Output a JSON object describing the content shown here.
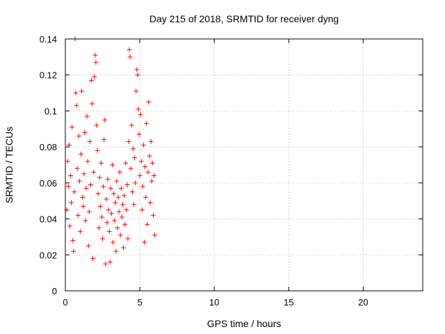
{
  "chart_data": {
    "type": "scatter",
    "title": "Day 215 of 2018, SRMTID for receiver dyng",
    "xlabel": "GPS time / hours",
    "ylabel": "SRMTID / TECUs",
    "xlim": [
      0,
      24
    ],
    "ylim": [
      0,
      0.14
    ],
    "x_ticks": [
      0,
      5,
      10,
      15,
      20
    ],
    "x_tick_labels": [
      "0",
      "5",
      "10",
      "15",
      "20"
    ],
    "y_ticks": [
      0,
      0.02,
      0.04,
      0.06,
      0.08,
      0.1,
      0.12,
      0.14
    ],
    "y_tick_labels": [
      "0",
      "0.02",
      "0.04",
      "0.06",
      "0.08",
      "0.1",
      "0.12",
      "0.14"
    ],
    "grid": true,
    "marker": "+",
    "color": "#ff0000",
    "series": [
      {
        "name": "SRMTID",
        "points": [
          [
            0.1,
            0.045
          ],
          [
            0.15,
            0.072
          ],
          [
            0.2,
            0.058
          ],
          [
            0.25,
            0.081
          ],
          [
            0.3,
            0.036
          ],
          [
            0.35,
            0.064
          ],
          [
            0.4,
            0.049
          ],
          [
            0.45,
            0.091
          ],
          [
            0.5,
            0.028
          ],
          [
            0.55,
            0.022
          ],
          [
            0.6,
            0.055
          ],
          [
            0.65,
            0.14
          ],
          [
            0.7,
            0.11
          ],
          [
            0.75,
            0.103
          ],
          [
            0.8,
            0.068
          ],
          [
            0.85,
            0.042
          ],
          [
            0.9,
            0.086
          ],
          [
            0.95,
            0.061
          ],
          [
            1.0,
            0.033
          ],
          [
            1.05,
            0.076
          ],
          [
            1.1,
            0.111
          ],
          [
            1.15,
            0.052
          ],
          [
            1.2,
            0.047
          ],
          [
            1.25,
            0.065
          ],
          [
            1.3,
            0.088
          ],
          [
            1.35,
            0.039
          ],
          [
            1.4,
            0.057
          ],
          [
            1.45,
            0.097
          ],
          [
            1.5,
            0.072
          ],
          [
            1.55,
            0.025
          ],
          [
            1.6,
            0.044
          ],
          [
            1.65,
            0.083
          ],
          [
            1.7,
            0.059
          ],
          [
            1.75,
            0.117
          ],
          [
            1.8,
            0.104
          ],
          [
            1.85,
            0.018
          ],
          [
            1.9,
            0.066
          ],
          [
            1.95,
            0.119
          ],
          [
            2.0,
            0.131
          ],
          [
            2.05,
            0.127
          ],
          [
            2.1,
            0.092
          ],
          [
            2.15,
            0.078
          ],
          [
            2.2,
            0.054
          ],
          [
            2.25,
            0.035
          ],
          [
            2.3,
            0.063
          ],
          [
            2.35,
            0.047
          ],
          [
            2.4,
            0.071
          ],
          [
            2.45,
            0.041
          ],
          [
            2.5,
            0.029
          ],
          [
            2.55,
            0.058
          ],
          [
            2.6,
            0.084
          ],
          [
            2.65,
            0.095
          ],
          [
            2.7,
            0.015
          ],
          [
            2.75,
            0.051
          ],
          [
            2.8,
            0.038
          ],
          [
            2.85,
            0.062
          ],
          [
            2.9,
            0.045
          ],
          [
            2.95,
            0.033
          ],
          [
            3.0,
            0.016
          ],
          [
            3.05,
            0.057
          ],
          [
            3.1,
            0.043
          ],
          [
            3.15,
            0.07
          ],
          [
            3.2,
            0.027
          ],
          [
            3.25,
            0.054
          ],
          [
            3.3,
            0.039
          ],
          [
            3.35,
            0.049
          ],
          [
            3.4,
            0.022
          ],
          [
            3.45,
            0.061
          ],
          [
            3.5,
            0.035
          ],
          [
            3.55,
            0.052
          ],
          [
            3.6,
            0.044
          ],
          [
            3.65,
            0.066
          ],
          [
            3.7,
            0.031
          ],
          [
            3.75,
            0.057
          ],
          [
            3.8,
            0.041
          ],
          [
            3.85,
            0.048
          ],
          [
            3.9,
            0.024
          ],
          [
            3.95,
            0.053
          ],
          [
            4.0,
            0.037
          ],
          [
            4.05,
            0.071
          ],
          [
            4.1,
            0.045
          ],
          [
            4.15,
            0.059
          ],
          [
            4.2,
            0.029
          ],
          [
            4.25,
            0.083
          ],
          [
            4.3,
            0.134
          ],
          [
            4.35,
            0.13
          ],
          [
            4.4,
            0.068
          ],
          [
            4.45,
            0.092
          ],
          [
            4.5,
            0.055
          ],
          [
            4.55,
            0.079
          ],
          [
            4.6,
            0.048
          ],
          [
            4.65,
            0.074
          ],
          [
            4.7,
            0.06
          ],
          [
            4.75,
            0.111
          ],
          [
            4.8,
            0.123
          ],
          [
            4.85,
            0.12
          ],
          [
            4.9,
            0.101
          ],
          [
            4.95,
            0.087
          ],
          [
            5.0,
            0.064
          ],
          [
            5.05,
            0.098
          ],
          [
            5.1,
            0.072
          ],
          [
            5.15,
            0.045
          ],
          [
            5.2,
            0.058
          ],
          [
            5.25,
            0.081
          ],
          [
            5.3,
            0.027
          ],
          [
            5.35,
            0.069
          ],
          [
            5.4,
            0.052
          ],
          [
            5.45,
            0.093
          ],
          [
            5.5,
            0.037
          ],
          [
            5.55,
            0.066
          ],
          [
            5.6,
            0.105
          ],
          [
            5.65,
            0.075
          ],
          [
            5.7,
            0.049
          ],
          [
            5.75,
            0.083
          ],
          [
            5.8,
            0.061
          ],
          [
            5.85,
            0.071
          ],
          [
            5.9,
            0.042
          ],
          [
            5.95,
            0.064
          ],
          [
            6.0,
            0.031
          ]
        ]
      }
    ]
  }
}
